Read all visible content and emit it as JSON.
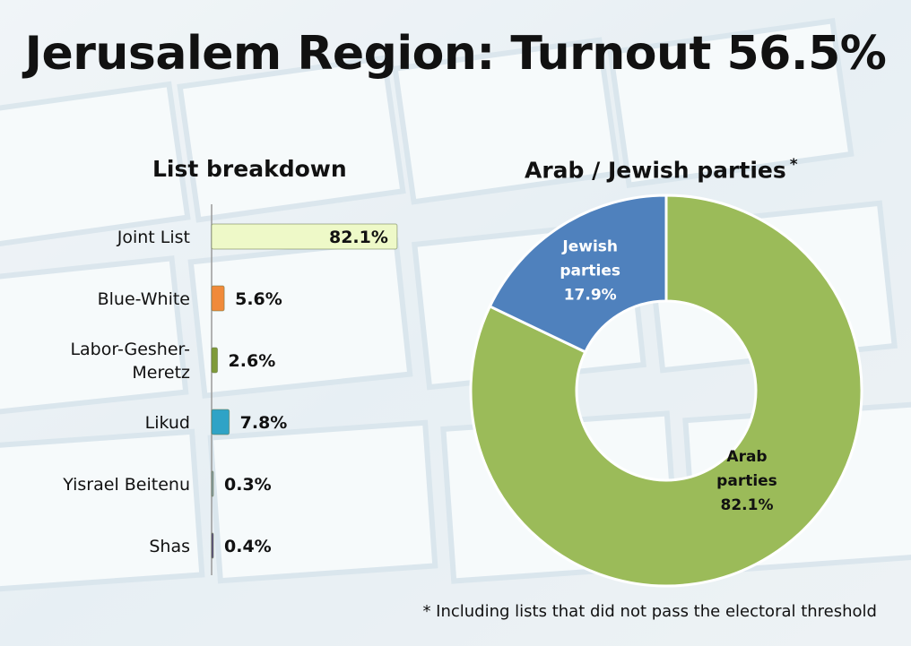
{
  "page": {
    "title": "Jerusalem Region: Turnout 56.5%",
    "footnote": "* Including lists that did not pass the electoral threshold"
  },
  "chart_data": [
    {
      "type": "bar",
      "orientation": "horizontal",
      "title": "List breakdown",
      "categories": [
        "Joint List",
        "Blue-White",
        "Labor-Gesher-Meretz",
        "Likud",
        "Yisrael Beitenu",
        "Shas"
      ],
      "category_lines": [
        [
          "Joint List"
        ],
        [
          "Blue-White"
        ],
        [
          "Labor-Gesher-",
          "Meretz"
        ],
        [
          "Likud"
        ],
        [
          "Yisrael Beitenu"
        ],
        [
          "Shas"
        ]
      ],
      "values": [
        82.1,
        5.6,
        2.6,
        7.8,
        0.3,
        0.4
      ],
      "value_labels": [
        "82.1%",
        "5.6%",
        "2.6%",
        "7.8%",
        "0.3%",
        "0.4%"
      ],
      "colors": [
        "#eef9c8",
        "#f08a3a",
        "#7f9a3a",
        "#2fa3c6",
        "#8aa0a8",
        "#5a4f86"
      ],
      "xlim": [
        0,
        100
      ],
      "grid": false,
      "legend": "none"
    },
    {
      "type": "pie",
      "style": "donut",
      "title": "Arab / Jewish parties",
      "title_mark": "*",
      "slices": [
        {
          "label_lines": [
            "Arab",
            "parties"
          ],
          "value": 82.1,
          "value_label": "82.1%",
          "color": "#9bbb59",
          "text_color": "#111111"
        },
        {
          "label_lines": [
            "Jewish",
            "parties"
          ],
          "value": 17.9,
          "value_label": "17.9%",
          "color": "#4f81bd",
          "text_color": "#ffffff"
        }
      ],
      "legend": "none"
    }
  ]
}
